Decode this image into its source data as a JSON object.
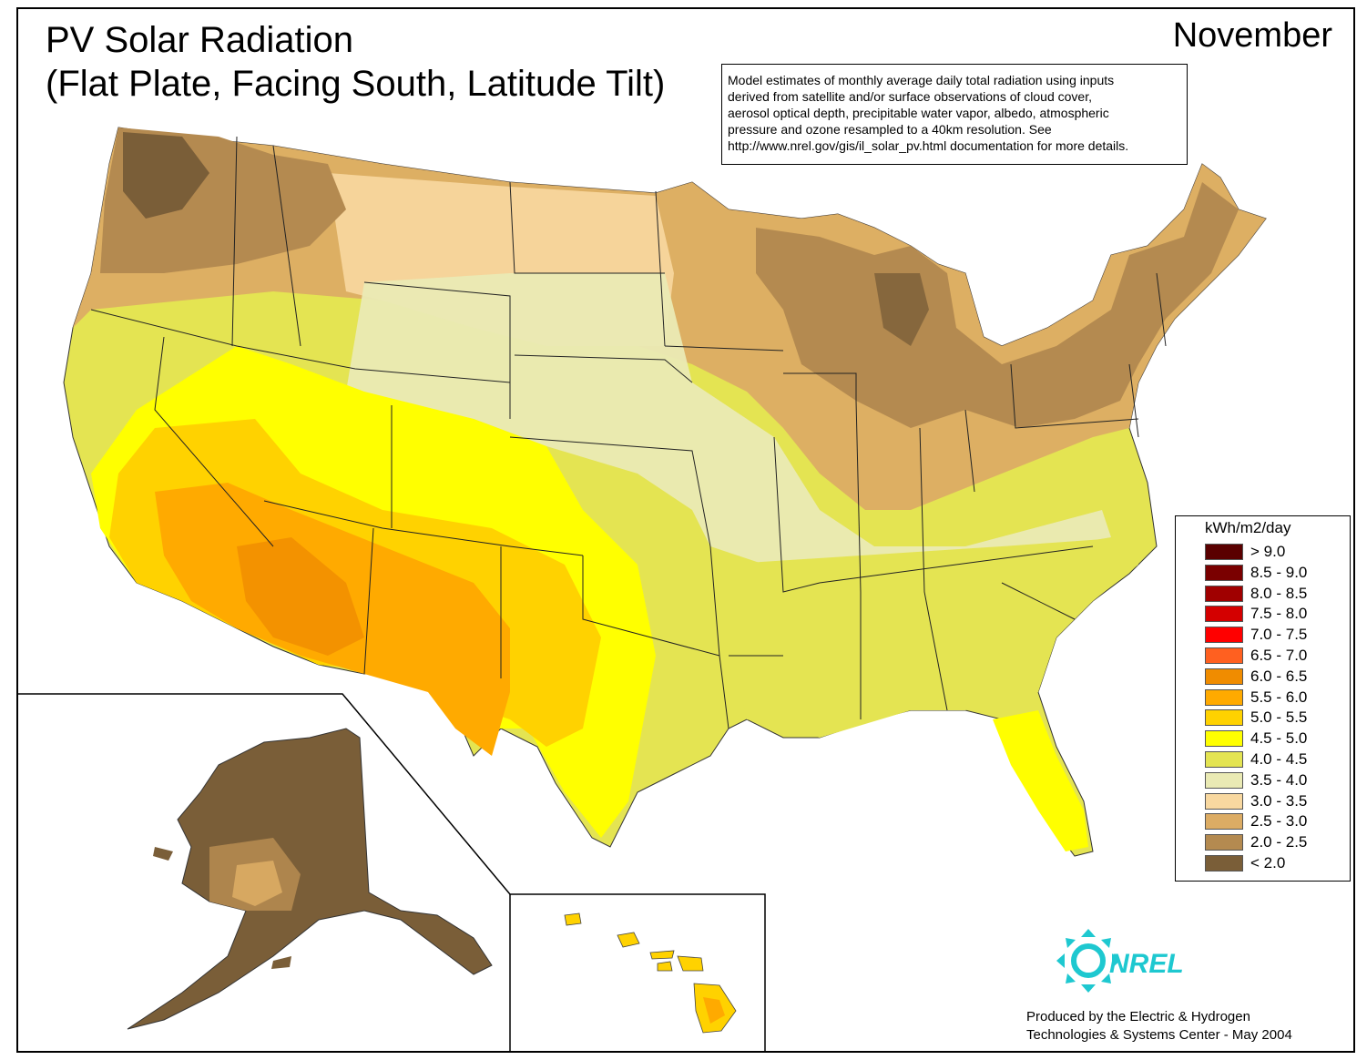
{
  "title_line1": "PV Solar Radiation",
  "title_line2": "(Flat Plate, Facing South, Latitude Tilt)",
  "month": "November",
  "note_lines": [
    "Model estimates of monthly average daily total radiation using inputs",
    "derived from satellite and/or surface observations of cloud cover,",
    "aerosol optical depth, precipitable water vapor, albedo, atmospheric",
    "pressure and ozone resampled to a 40km resolution.  See",
    "http://www.nrel.gov/gis/il_solar_pv.html documentation for more details."
  ],
  "legend": {
    "title": "kWh/m2/day",
    "items": [
      {
        "label": "> 9.0",
        "color": "#5a0000"
      },
      {
        "label": "8.5 - 9.0",
        "color": "#7a0000"
      },
      {
        "label": "8.0 - 8.5",
        "color": "#a00000"
      },
      {
        "label": "7.5 - 8.0",
        "color": "#d40000"
      },
      {
        "label": "7.0 - 7.5",
        "color": "#ff0000"
      },
      {
        "label": "6.5 - 7.0",
        "color": "#ff6020"
      },
      {
        "label": "6.0 - 6.5",
        "color": "#f08c00"
      },
      {
        "label": "5.5 - 6.0",
        "color": "#ffaa00"
      },
      {
        "label": "5.0 - 5.5",
        "color": "#ffd200"
      },
      {
        "label": "4.5 - 5.0",
        "color": "#ffff00"
      },
      {
        "label": "4.0 - 4.5",
        "color": "#e4e452"
      },
      {
        "label": "3.5 - 4.0",
        "color": "#eaeab4"
      },
      {
        "label": "3.0 - 3.5",
        "color": "#f8d8a0"
      },
      {
        "label": "2.5 - 3.0",
        "color": "#dcac64"
      },
      {
        "label": "2.0 - 2.5",
        "color": "#b48a50"
      },
      {
        "label": "< 2.0",
        "color": "#7a5e38"
      }
    ]
  },
  "logo_text": "NREL",
  "logo_color": "#1ec8d0",
  "credit_line1": "Produced by the Electric & Hydrogen",
  "credit_line2": "Technologies & Systems Center - May 2004"
}
